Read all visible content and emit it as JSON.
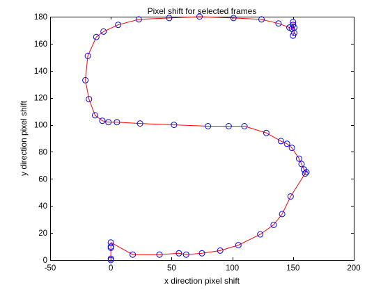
{
  "chart_data": {
    "type": "line",
    "title": "Pixel shift for selected frames",
    "xlabel": "x direction pixel shift",
    "ylabel": "y direction pixel shift",
    "xlim": [
      -50,
      200
    ],
    "ylim": [
      0,
      180
    ],
    "xticks": [
      -50,
      0,
      50,
      100,
      150,
      200
    ],
    "yticks": [
      0,
      20,
      40,
      60,
      80,
      100,
      120,
      140,
      160,
      180
    ],
    "grid": false,
    "legend": "none",
    "line_color": "#ff0000",
    "marker": "circle",
    "marker_color": "#0000ff",
    "series": [
      {
        "points": [
          [
            0,
            0
          ],
          [
            0,
            1
          ],
          [
            0,
            9
          ],
          [
            0,
            10
          ],
          [
            0,
            13
          ],
          [
            18,
            4
          ],
          [
            40,
            4
          ],
          [
            56,
            5
          ],
          [
            62,
            4
          ],
          [
            75,
            5
          ],
          [
            90,
            7
          ],
          [
            105,
            11
          ],
          [
            123,
            19
          ],
          [
            134,
            26
          ],
          [
            141,
            34
          ],
          [
            148,
            47
          ],
          [
            160,
            64
          ],
          [
            161,
            65
          ],
          [
            159,
            67
          ],
          [
            157,
            71
          ],
          [
            155,
            75
          ],
          [
            149,
            83
          ],
          [
            145,
            86
          ],
          [
            140,
            88
          ],
          [
            128,
            94
          ],
          [
            110,
            99
          ],
          [
            97,
            99
          ],
          [
            80,
            99
          ],
          [
            52,
            100
          ],
          [
            24,
            101
          ],
          [
            5,
            102
          ],
          [
            -2,
            102
          ],
          [
            -7,
            103
          ],
          [
            -13,
            107
          ],
          [
            -18,
            119
          ],
          [
            -21,
            133
          ],
          [
            -19,
            151
          ],
          [
            -12,
            165
          ],
          [
            -6,
            169
          ],
          [
            6,
            174
          ],
          [
            23,
            178
          ],
          [
            48,
            179
          ],
          [
            73,
            180
          ],
          [
            101,
            179
          ],
          [
            124,
            178
          ],
          [
            138,
            175
          ],
          [
            147,
            172
          ],
          [
            149,
            171
          ],
          [
            151,
            172
          ],
          [
            150,
            174
          ],
          [
            150,
            176
          ],
          [
            151,
            168
          ],
          [
            150,
            166
          ]
        ]
      }
    ]
  }
}
